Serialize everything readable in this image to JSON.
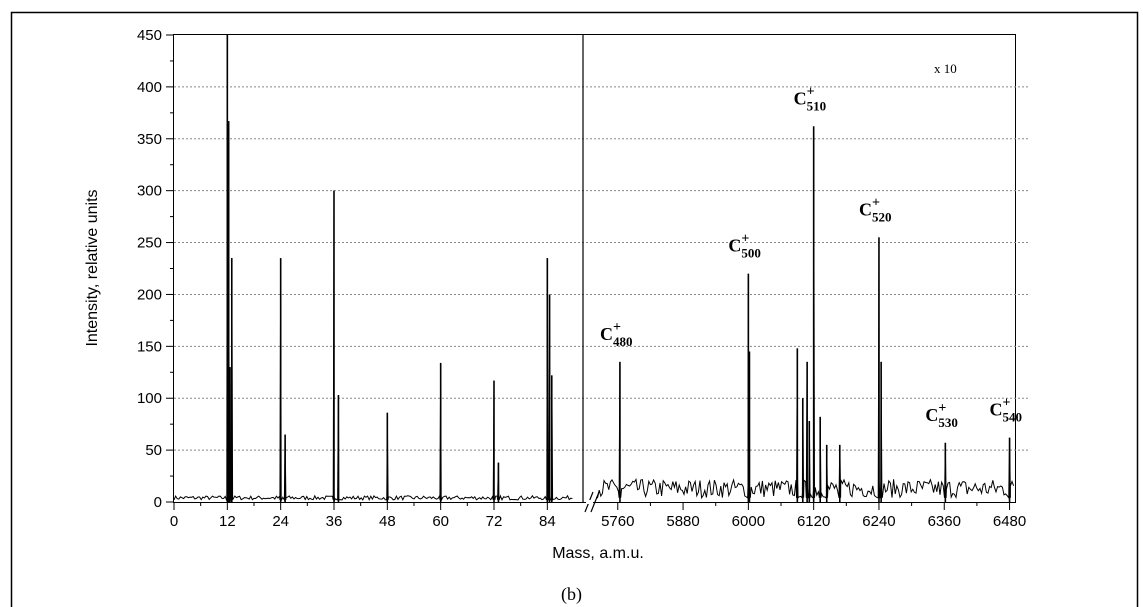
{
  "figure": {
    "panel_label": "(b)"
  },
  "chart_data": {
    "type": "line",
    "ylabel": "Intensity, relative units",
    "xlabel": "Mass, a.m.u.",
    "ylim": [
      0,
      450
    ],
    "yticks": [
      0,
      50,
      100,
      150,
      200,
      250,
      300,
      350,
      400,
      450
    ],
    "grid": "horizontal dotted",
    "axis_break": "after 84 (from ~90 to ~5720)",
    "left_segment": {
      "xlim": [
        0,
        90
      ],
      "xticks": [
        0,
        12,
        24,
        36,
        48,
        60,
        72,
        84
      ],
      "peaks": [
        {
          "x": 12,
          "y": 450
        },
        {
          "x": 12.3,
          "y": 367
        },
        {
          "x": 12.6,
          "y": 130
        },
        {
          "x": 13,
          "y": 235
        },
        {
          "x": 24,
          "y": 235
        },
        {
          "x": 25,
          "y": 65
        },
        {
          "x": 36,
          "y": 300
        },
        {
          "x": 37,
          "y": 103
        },
        {
          "x": 48,
          "y": 86
        },
        {
          "x": 60,
          "y": 134
        },
        {
          "x": 72,
          "y": 117
        },
        {
          "x": 73,
          "y": 38
        },
        {
          "x": 84,
          "y": 235
        },
        {
          "x": 84.5,
          "y": 200
        },
        {
          "x": 85,
          "y": 122
        }
      ]
    },
    "right_segment": {
      "xlim": [
        5720,
        6490
      ],
      "xticks": [
        5760,
        5880,
        6000,
        6120,
        6240,
        6360,
        6480
      ],
      "annotation": "x 10",
      "peaks": [
        {
          "x": 5764,
          "y": 135
        },
        {
          "x": 6000,
          "y": 220
        },
        {
          "x": 6002,
          "y": 145
        },
        {
          "x": 6090,
          "y": 148
        },
        {
          "x": 6100,
          "y": 100
        },
        {
          "x": 6108,
          "y": 135
        },
        {
          "x": 6112,
          "y": 78
        },
        {
          "x": 6120,
          "y": 362
        },
        {
          "x": 6132,
          "y": 82
        },
        {
          "x": 6144,
          "y": 55
        },
        {
          "x": 6168,
          "y": 55
        },
        {
          "x": 6240,
          "y": 255
        },
        {
          "x": 6244,
          "y": 135
        },
        {
          "x": 6362,
          "y": 57
        },
        {
          "x": 6480,
          "y": 62
        }
      ],
      "peak_labels": [
        {
          "sub": "480",
          "x": 5764,
          "y": 135
        },
        {
          "sub": "500",
          "x": 6000,
          "y": 220
        },
        {
          "sub": "510",
          "x": 6120,
          "y": 362
        },
        {
          "sub": "520",
          "x": 6240,
          "y": 255
        },
        {
          "sub": "530",
          "x": 6362,
          "y": 57
        },
        {
          "sub": "540",
          "x": 6480,
          "y": 62
        }
      ],
      "label_symbol": "C",
      "label_charge": "+"
    }
  }
}
